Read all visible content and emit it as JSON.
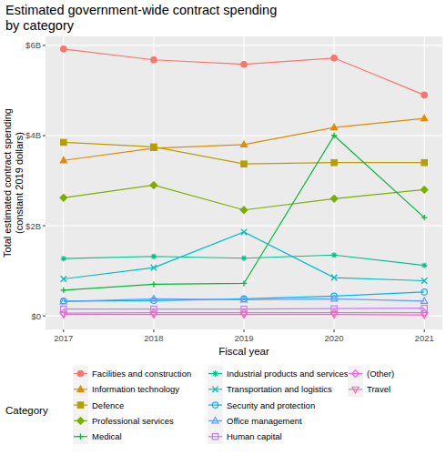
{
  "chart_data": {
    "type": "line",
    "title": "Estimated government-wide contract spending\nby category",
    "x_label": "Fiscal year",
    "y_label": "Total estimated contract spending\n(constant 2019 dollars)",
    "legend_title": "Category",
    "x": [
      2017,
      2018,
      2019,
      2020,
      2021
    ],
    "xlim": [
      2016.8,
      2021.2
    ],
    "xticks": [
      2017,
      2018,
      2019,
      2020,
      2021
    ],
    "ylim": [
      -0.3,
      6.2
    ],
    "yticks": [
      {
        "value": 0,
        "label": "$0"
      },
      {
        "value": 2,
        "label": "$2B"
      },
      {
        "value": 4,
        "label": "$4B"
      },
      {
        "value": 6,
        "label": "$6B"
      }
    ],
    "grid": true,
    "legend": "bottom",
    "series": [
      {
        "name": "Facilities and construction",
        "color": "#F8766D",
        "marker": "circle",
        "values": [
          5.92,
          5.68,
          5.58,
          5.72,
          4.9
        ]
      },
      {
        "name": "Information technology",
        "color": "#DE8C00",
        "marker": "triangle",
        "values": [
          3.45,
          3.72,
          3.8,
          4.18,
          4.38
        ]
      },
      {
        "name": "Defence",
        "color": "#B79F00",
        "marker": "square",
        "values": [
          3.85,
          3.75,
          3.37,
          3.4,
          3.4
        ]
      },
      {
        "name": "Professional services",
        "color": "#7CAE00",
        "marker": "diamond",
        "values": [
          2.62,
          2.9,
          2.35,
          2.6,
          2.8
        ]
      },
      {
        "name": "Medical",
        "color": "#00BA38",
        "marker": "plus",
        "values": [
          0.57,
          0.7,
          0.72,
          4.0,
          2.18
        ]
      },
      {
        "name": "Industrial products and services",
        "color": "#00C08B",
        "marker": "asterisk",
        "values": [
          1.27,
          1.32,
          1.28,
          1.35,
          1.12
        ]
      },
      {
        "name": "Transportation and logistics",
        "color": "#00BFC4",
        "marker": "cross",
        "values": [
          0.82,
          1.07,
          1.86,
          0.85,
          0.78
        ]
      },
      {
        "name": "Security and protection",
        "color": "#00B4F0",
        "marker": "circle-open",
        "values": [
          0.33,
          0.34,
          0.38,
          0.44,
          0.53
        ]
      },
      {
        "name": "Office management",
        "color": "#619CFF",
        "marker": "triangle-open",
        "values": [
          0.32,
          0.38,
          0.36,
          0.38,
          0.33
        ]
      },
      {
        "name": "Human capital",
        "color": "#C77CFF",
        "marker": "square-open",
        "values": [
          0.15,
          0.15,
          0.15,
          0.16,
          0.17
        ]
      },
      {
        "name": "(Other)",
        "color": "#F564E3",
        "marker": "diamond-open",
        "values": [
          0.06,
          0.07,
          0.07,
          0.07,
          0.07
        ]
      },
      {
        "name": "Travel",
        "color": "#FF64B0",
        "marker": "triangle-down",
        "values": [
          0.03,
          0.03,
          0.03,
          0.03,
          0.02
        ]
      }
    ]
  }
}
